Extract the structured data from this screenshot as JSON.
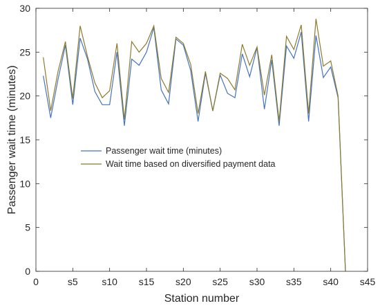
{
  "chart_data": {
    "type": "line",
    "xlabel": "Station number",
    "ylabel": "Passenger wait time (minutes)",
    "xlim": [
      0,
      45
    ],
    "ylim": [
      0,
      30
    ],
    "x_ticks": [
      0,
      5,
      10,
      15,
      20,
      25,
      30,
      35,
      40,
      45
    ],
    "x_tick_labels": [
      "0",
      "s5",
      "s10",
      "s15",
      "s20",
      "s25",
      "s30",
      "s35",
      "s40",
      "s45"
    ],
    "y_ticks": [
      0,
      5,
      10,
      15,
      20,
      25,
      30
    ],
    "y_tick_labels": [
      "0",
      "5",
      "10",
      "15",
      "20",
      "25",
      "30"
    ],
    "grid": false,
    "legend_position": "center-left",
    "x": [
      1,
      2,
      3,
      4,
      5,
      6,
      7,
      8,
      9,
      10,
      11,
      12,
      13,
      14,
      15,
      16,
      17,
      18,
      19,
      20,
      21,
      22,
      23,
      24,
      25,
      26,
      27,
      28,
      29,
      30,
      31,
      32,
      33,
      34,
      35,
      36,
      37,
      38,
      39,
      40,
      41,
      42
    ],
    "series": [
      {
        "name": "Passenger wait time (minutes)",
        "color": "#4472C4",
        "values": [
          22.3,
          17.5,
          21.9,
          25.8,
          19.0,
          26.6,
          24.2,
          20.5,
          19.0,
          19.0,
          25.0,
          16.6,
          24.2,
          23.5,
          25.0,
          27.8,
          20.7,
          19.1,
          26.5,
          25.8,
          22.9,
          17.1,
          22.6,
          18.3,
          22.4,
          20.3,
          19.8,
          24.8,
          22.2,
          25.5,
          18.5,
          24.1,
          16.6,
          25.7,
          24.3,
          27.3,
          17.1,
          26.9,
          22.1,
          23.3,
          19.8,
          0.0
        ]
      },
      {
        "name": "Wait time based on diversified payment data",
        "color": "#8B7B2B",
        "values": [
          24.4,
          18.3,
          22.8,
          26.2,
          19.7,
          28.0,
          24.5,
          21.5,
          19.8,
          20.6,
          26.0,
          17.3,
          26.2,
          25.0,
          26.0,
          28.0,
          22.0,
          20.4,
          26.7,
          26.0,
          23.6,
          18.0,
          22.8,
          18.3,
          22.6,
          22.0,
          20.7,
          25.9,
          23.5,
          25.6,
          20.1,
          24.7,
          17.1,
          26.8,
          25.3,
          28.1,
          18.0,
          28.8,
          23.4,
          24.0,
          20.0,
          0.0
        ]
      }
    ]
  }
}
